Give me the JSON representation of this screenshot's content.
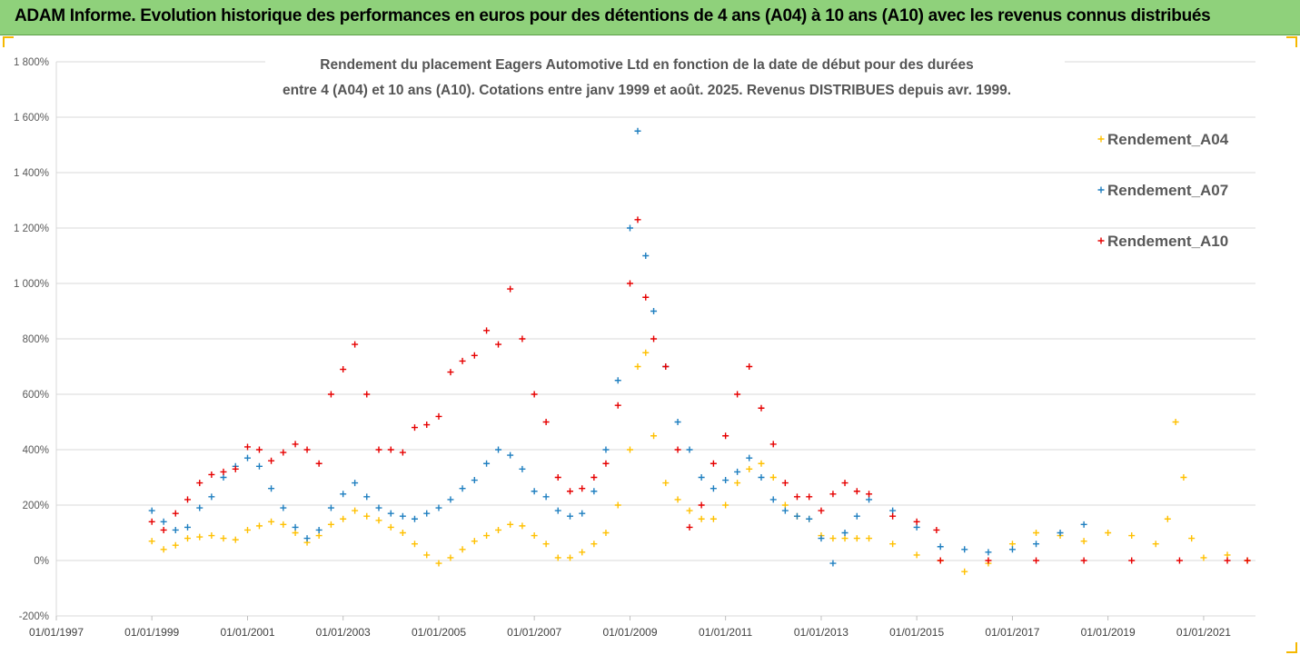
{
  "header": {
    "banner": "ADAM Informe. Evolution historique des performances en euros pour des détentions de 4 ans (A04) à 10 ans (A10) avec les revenus connus distribués"
  },
  "chart_data": {
    "type": "scatter",
    "title_line1": "Rendement du placement Eagers Automotive Ltd en fonction de la date de début pour des durées",
    "title_line2": "entre 4 (A04) et 10 ans (A10). Cotations entre janv 1999 et août. 2025. Revenus DISTRIBUES depuis avr. 1999.",
    "xlabel": "",
    "ylabel": "",
    "x_ticks": [
      "01/01/1997",
      "01/01/1999",
      "01/01/2001",
      "01/01/2003",
      "01/01/2005",
      "01/01/2007",
      "01/01/2009",
      "01/01/2011",
      "01/01/2013",
      "01/01/2015",
      "01/01/2017",
      "01/01/2019",
      "01/01/2021"
    ],
    "y_ticks": [
      "-200%",
      "0%",
      "200%",
      "400%",
      "600%",
      "800%",
      "1 000%",
      "1 200%",
      "1 400%",
      "1 600%",
      "1 800%"
    ],
    "xlim": [
      "1997-01-01",
      "2022-02-01"
    ],
    "ylim": [
      -200,
      1800
    ],
    "y_unit": "%",
    "grid": "horizontal",
    "legend_position": "top-right",
    "marker": "+",
    "series": [
      {
        "name": "Rendement_A04",
        "color": "#ffc000",
        "points": [
          [
            "1999-01-01",
            70
          ],
          [
            "1999-04-01",
            40
          ],
          [
            "1999-07-01",
            55
          ],
          [
            "1999-10-01",
            80
          ],
          [
            "2000-01-01",
            85
          ],
          [
            "2000-04-01",
            90
          ],
          [
            "2000-07-01",
            80
          ],
          [
            "2000-10-01",
            75
          ],
          [
            "2001-01-01",
            110
          ],
          [
            "2001-04-01",
            125
          ],
          [
            "2001-07-01",
            140
          ],
          [
            "2001-10-01",
            130
          ],
          [
            "2002-01-01",
            100
          ],
          [
            "2002-04-01",
            65
          ],
          [
            "2002-07-01",
            90
          ],
          [
            "2002-10-01",
            130
          ],
          [
            "2003-01-01",
            150
          ],
          [
            "2003-04-01",
            180
          ],
          [
            "2003-07-01",
            160
          ],
          [
            "2003-10-01",
            145
          ],
          [
            "2004-01-01",
            120
          ],
          [
            "2004-04-01",
            100
          ],
          [
            "2004-07-01",
            60
          ],
          [
            "2004-10-01",
            20
          ],
          [
            "2005-01-01",
            -10
          ],
          [
            "2005-04-01",
            10
          ],
          [
            "2005-07-01",
            40
          ],
          [
            "2005-10-01",
            70
          ],
          [
            "2006-01-01",
            90
          ],
          [
            "2006-04-01",
            110
          ],
          [
            "2006-07-01",
            130
          ],
          [
            "2006-10-01",
            125
          ],
          [
            "2007-01-01",
            90
          ],
          [
            "2007-04-01",
            60
          ],
          [
            "2007-07-01",
            10
          ],
          [
            "2007-10-01",
            10
          ],
          [
            "2008-01-01",
            30
          ],
          [
            "2008-04-01",
            60
          ],
          [
            "2008-07-01",
            100
          ],
          [
            "2008-10-01",
            200
          ],
          [
            "2009-01-01",
            400
          ],
          [
            "2009-03-01",
            700
          ],
          [
            "2009-05-01",
            750
          ],
          [
            "2009-07-01",
            450
          ],
          [
            "2009-10-01",
            280
          ],
          [
            "2010-01-01",
            220
          ],
          [
            "2010-04-01",
            180
          ],
          [
            "2010-07-01",
            150
          ],
          [
            "2010-10-01",
            150
          ],
          [
            "2011-01-01",
            200
          ],
          [
            "2011-04-01",
            280
          ],
          [
            "2011-07-01",
            330
          ],
          [
            "2011-10-01",
            350
          ],
          [
            "2012-01-01",
            300
          ],
          [
            "2012-04-01",
            200
          ],
          [
            "2012-07-01",
            160
          ],
          [
            "2012-10-01",
            150
          ],
          [
            "2013-01-01",
            90
          ],
          [
            "2013-04-01",
            80
          ],
          [
            "2013-07-01",
            80
          ],
          [
            "2013-10-01",
            80
          ],
          [
            "2014-01-01",
            80
          ],
          [
            "2014-07-01",
            60
          ],
          [
            "2015-01-01",
            20
          ],
          [
            "2015-07-01",
            0
          ],
          [
            "2016-01-01",
            -40
          ],
          [
            "2016-07-01",
            -10
          ],
          [
            "2017-01-01",
            60
          ],
          [
            "2017-07-01",
            100
          ],
          [
            "2018-01-01",
            90
          ],
          [
            "2018-07-01",
            70
          ],
          [
            "2019-01-01",
            100
          ],
          [
            "2019-07-01",
            90
          ],
          [
            "2020-01-01",
            60
          ],
          [
            "2020-04-01",
            150
          ],
          [
            "2020-06-01",
            500
          ],
          [
            "2020-08-01",
            300
          ],
          [
            "2020-10-01",
            80
          ],
          [
            "2021-01-01",
            10
          ],
          [
            "2021-07-01",
            20
          ],
          [
            "2021-12-01",
            0
          ]
        ]
      },
      {
        "name": "Rendement_A07",
        "color": "#1f7fc0",
        "points": [
          [
            "1999-01-01",
            180
          ],
          [
            "1999-04-01",
            140
          ],
          [
            "1999-07-01",
            110
          ],
          [
            "1999-10-01",
            120
          ],
          [
            "2000-01-01",
            190
          ],
          [
            "2000-04-01",
            230
          ],
          [
            "2000-07-01",
            300
          ],
          [
            "2000-10-01",
            340
          ],
          [
            "2001-01-01",
            370
          ],
          [
            "2001-04-01",
            340
          ],
          [
            "2001-07-01",
            260
          ],
          [
            "2001-10-01",
            190
          ],
          [
            "2002-01-01",
            120
          ],
          [
            "2002-04-01",
            80
          ],
          [
            "2002-07-01",
            110
          ],
          [
            "2002-10-01",
            190
          ],
          [
            "2003-01-01",
            240
          ],
          [
            "2003-04-01",
            280
          ],
          [
            "2003-07-01",
            230
          ],
          [
            "2003-10-01",
            190
          ],
          [
            "2004-01-01",
            170
          ],
          [
            "2004-04-01",
            160
          ],
          [
            "2004-07-01",
            150
          ],
          [
            "2004-10-01",
            170
          ],
          [
            "2005-01-01",
            190
          ],
          [
            "2005-04-01",
            220
          ],
          [
            "2005-07-01",
            260
          ],
          [
            "2005-10-01",
            290
          ],
          [
            "2006-01-01",
            350
          ],
          [
            "2006-04-01",
            400
          ],
          [
            "2006-07-01",
            380
          ],
          [
            "2006-10-01",
            330
          ],
          [
            "2007-01-01",
            250
          ],
          [
            "2007-04-01",
            230
          ],
          [
            "2007-07-01",
            180
          ],
          [
            "2007-10-01",
            160
          ],
          [
            "2008-01-01",
            170
          ],
          [
            "2008-04-01",
            250
          ],
          [
            "2008-07-01",
            400
          ],
          [
            "2008-10-01",
            650
          ],
          [
            "2009-01-01",
            1200
          ],
          [
            "2009-03-01",
            1550
          ],
          [
            "2009-05-01",
            1100
          ],
          [
            "2009-07-01",
            900
          ],
          [
            "2009-10-01",
            700
          ],
          [
            "2010-01-01",
            500
          ],
          [
            "2010-04-01",
            400
          ],
          [
            "2010-07-01",
            300
          ],
          [
            "2010-10-01",
            260
          ],
          [
            "2011-01-01",
            290
          ],
          [
            "2011-04-01",
            320
          ],
          [
            "2011-07-01",
            370
          ],
          [
            "2011-10-01",
            300
          ],
          [
            "2012-01-01",
            220
          ],
          [
            "2012-04-01",
            180
          ],
          [
            "2012-07-01",
            160
          ],
          [
            "2012-10-01",
            150
          ],
          [
            "2013-01-01",
            80
          ],
          [
            "2013-04-01",
            -10
          ],
          [
            "2013-07-01",
            100
          ],
          [
            "2013-10-01",
            160
          ],
          [
            "2014-01-01",
            220
          ],
          [
            "2014-07-01",
            180
          ],
          [
            "2015-01-01",
            120
          ],
          [
            "2015-07-01",
            50
          ],
          [
            "2016-01-01",
            40
          ],
          [
            "2016-07-01",
            30
          ],
          [
            "2017-01-01",
            40
          ],
          [
            "2017-07-01",
            60
          ],
          [
            "2018-01-01",
            100
          ],
          [
            "2018-07-01",
            130
          ]
        ]
      },
      {
        "name": "Rendement_A10",
        "color": "#e60000",
        "points": [
          [
            "1999-01-01",
            140
          ],
          [
            "1999-04-01",
            110
          ],
          [
            "1999-07-01",
            170
          ],
          [
            "1999-10-01",
            220
          ],
          [
            "2000-01-01",
            280
          ],
          [
            "2000-04-01",
            310
          ],
          [
            "2000-07-01",
            320
          ],
          [
            "2000-10-01",
            330
          ],
          [
            "2001-01-01",
            410
          ],
          [
            "2001-04-01",
            400
          ],
          [
            "2001-07-01",
            360
          ],
          [
            "2001-10-01",
            390
          ],
          [
            "2002-01-01",
            420
          ],
          [
            "2002-04-01",
            400
          ],
          [
            "2002-07-01",
            350
          ],
          [
            "2002-10-01",
            600
          ],
          [
            "2003-01-01",
            690
          ],
          [
            "2003-04-01",
            780
          ],
          [
            "2003-07-01",
            600
          ],
          [
            "2003-10-01",
            400
          ],
          [
            "2004-01-01",
            400
          ],
          [
            "2004-04-01",
            390
          ],
          [
            "2004-07-01",
            480
          ],
          [
            "2004-10-01",
            490
          ],
          [
            "2005-01-01",
            520
          ],
          [
            "2005-04-01",
            680
          ],
          [
            "2005-07-01",
            720
          ],
          [
            "2005-10-01",
            740
          ],
          [
            "2006-01-01",
            830
          ],
          [
            "2006-04-01",
            780
          ],
          [
            "2006-07-01",
            980
          ],
          [
            "2006-10-01",
            800
          ],
          [
            "2007-01-01",
            600
          ],
          [
            "2007-04-01",
            500
          ],
          [
            "2007-07-01",
            300
          ],
          [
            "2007-10-01",
            250
          ],
          [
            "2008-01-01",
            260
          ],
          [
            "2008-04-01",
            300
          ],
          [
            "2008-07-01",
            350
          ],
          [
            "2008-10-01",
            560
          ],
          [
            "2009-01-01",
            1000
          ],
          [
            "2009-03-01",
            1230
          ],
          [
            "2009-05-01",
            950
          ],
          [
            "2009-07-01",
            800
          ],
          [
            "2009-10-01",
            700
          ],
          [
            "2010-01-01",
            400
          ],
          [
            "2010-04-01",
            120
          ],
          [
            "2010-07-01",
            200
          ],
          [
            "2010-10-01",
            350
          ],
          [
            "2011-01-01",
            450
          ],
          [
            "2011-04-01",
            600
          ],
          [
            "2011-07-01",
            700
          ],
          [
            "2011-10-01",
            550
          ],
          [
            "2012-01-01",
            420
          ],
          [
            "2012-04-01",
            280
          ],
          [
            "2012-07-01",
            230
          ],
          [
            "2012-10-01",
            230
          ],
          [
            "2013-01-01",
            180
          ],
          [
            "2013-04-01",
            240
          ],
          [
            "2013-07-01",
            280
          ],
          [
            "2013-10-01",
            250
          ],
          [
            "2014-01-01",
            240
          ],
          [
            "2014-07-01",
            160
          ],
          [
            "2015-01-01",
            140
          ],
          [
            "2015-06-01",
            110
          ],
          [
            "2015-07-01",
            0
          ],
          [
            "2016-07-01",
            0
          ],
          [
            "2017-07-01",
            0
          ],
          [
            "2018-07-01",
            0
          ],
          [
            "2019-07-01",
            0
          ],
          [
            "2020-07-01",
            0
          ],
          [
            "2021-07-01",
            0
          ],
          [
            "2021-12-01",
            0
          ]
        ]
      }
    ]
  }
}
